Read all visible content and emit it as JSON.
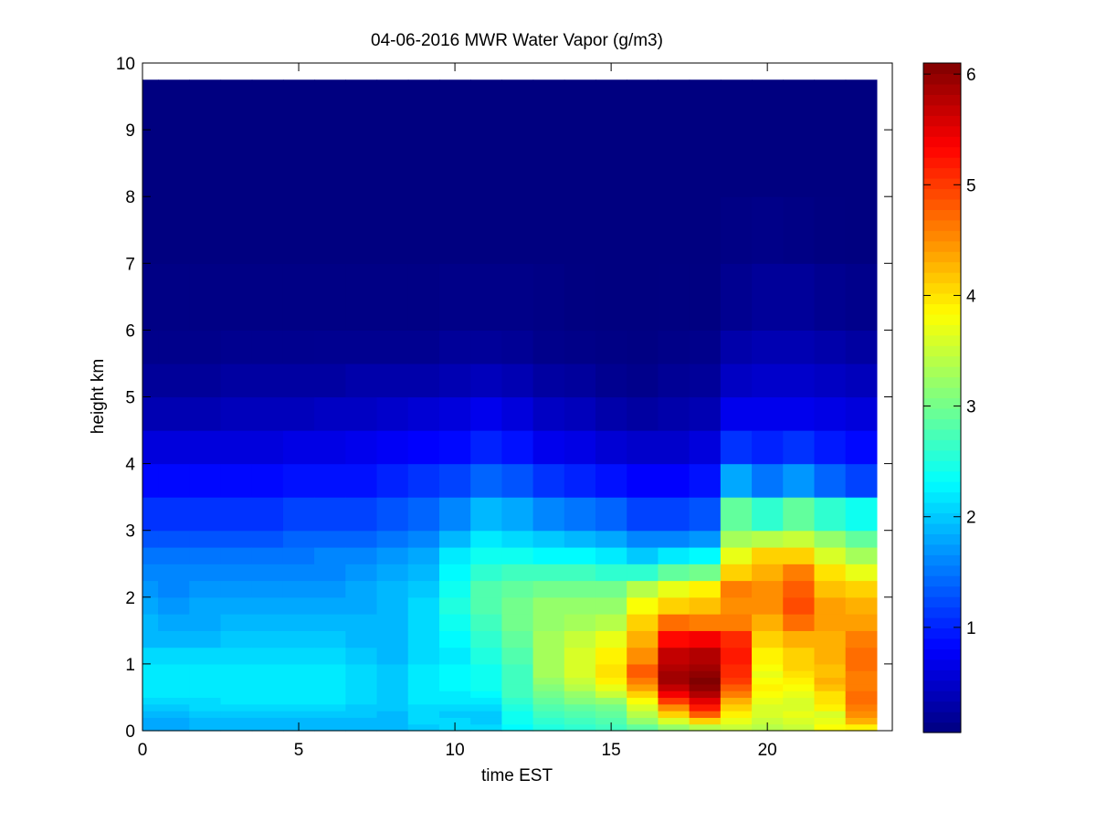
{
  "chart_data": {
    "type": "heatmap",
    "title": "04-06-2016 MWR Water Vapor (g/m3)",
    "xlabel": "time EST",
    "ylabel": "height km",
    "xlim": [
      0,
      24
    ],
    "ylim": [
      0,
      10
    ],
    "xticks": [
      "0",
      "5",
      "10",
      "15",
      "20"
    ],
    "yticks": [
      "0",
      "1",
      "2",
      "3",
      "4",
      "5",
      "6",
      "7",
      "8",
      "9",
      "10"
    ],
    "colorbar": {
      "colormap": "jet",
      "clim": [
        0.05,
        6.1
      ],
      "ticks": [
        "1",
        "2",
        "3",
        "4",
        "5",
        "6"
      ]
    },
    "grid": false,
    "x_range_data": [
      0,
      23.5
    ],
    "y_range_data": [
      0,
      9.75
    ],
    "time_hours": [
      0.5,
      1.5,
      2.5,
      3.5,
      4.5,
      5.5,
      6.5,
      7.5,
      8.5,
      9.5,
      10.5,
      11.5,
      12.5,
      13.5,
      14.5,
      15.5,
      16.5,
      17.5,
      18.5,
      19.5,
      20.5,
      21.5,
      22.5,
      23.5
    ],
    "height_km": [
      0,
      0.1,
      0.2,
      0.3,
      0.4,
      0.5,
      0.6,
      0.7,
      0.8,
      0.9,
      1.0,
      1.25,
      1.5,
      1.75,
      2.0,
      2.25,
      2.5,
      2.75,
      3.0,
      3.5,
      4.0,
      4.5,
      5.0,
      5.5,
      6.0,
      7.0,
      8.0,
      9.0,
      9.75
    ],
    "profiles": [
      [
        1.8,
        1.8,
        1.9,
        2.0,
        2.1,
        2.2,
        2.2,
        2.2,
        2.2,
        2.2,
        2.1,
        1.9,
        1.9,
        1.8,
        1.7,
        1.6,
        1.5,
        1.3,
        1.1,
        0.85,
        0.6,
        0.35,
        0.2,
        0.12,
        0.08,
        0.05,
        0.05,
        0.05,
        0.05
      ],
      [
        1.8,
        1.8,
        1.9,
        2.0,
        2.1,
        2.2,
        2.2,
        2.2,
        2.2,
        2.2,
        2.1,
        1.9,
        1.8,
        1.7,
        1.6,
        1.6,
        1.5,
        1.3,
        1.1,
        0.85,
        0.6,
        0.35,
        0.2,
        0.12,
        0.08,
        0.05,
        0.05,
        0.05,
        0.05
      ],
      [
        1.9,
        1.9,
        2.0,
        2.1,
        2.1,
        2.2,
        2.2,
        2.2,
        2.2,
        2.2,
        2.1,
        1.9,
        1.8,
        1.8,
        1.7,
        1.6,
        1.5,
        1.3,
        1.1,
        0.85,
        0.6,
        0.35,
        0.2,
        0.12,
        0.08,
        0.05,
        0.05,
        0.05,
        0.05
      ],
      [
        1.9,
        1.9,
        2.0,
        2.1,
        2.2,
        2.2,
        2.2,
        2.2,
        2.2,
        2.2,
        2.1,
        2.0,
        1.9,
        1.8,
        1.7,
        1.6,
        1.5,
        1.3,
        1.1,
        0.85,
        0.6,
        0.4,
        0.25,
        0.14,
        0.08,
        0.05,
        0.05,
        0.05,
        0.05
      ],
      [
        1.9,
        1.9,
        2.0,
        2.1,
        2.2,
        2.2,
        2.2,
        2.2,
        2.2,
        2.2,
        2.1,
        2.0,
        1.9,
        1.8,
        1.7,
        1.6,
        1.5,
        1.3,
        1.1,
        0.85,
        0.6,
        0.4,
        0.25,
        0.14,
        0.08,
        0.05,
        0.05,
        0.05,
        0.05
      ],
      [
        1.9,
        1.9,
        2.0,
        2.1,
        2.2,
        2.2,
        2.2,
        2.2,
        2.2,
        2.2,
        2.1,
        2.0,
        1.9,
        1.8,
        1.7,
        1.6,
        1.5,
        1.4,
        1.2,
        0.9,
        0.65,
        0.4,
        0.25,
        0.14,
        0.08,
        0.05,
        0.05,
        0.05,
        0.05
      ],
      [
        1.9,
        1.9,
        2.0,
        2.1,
        2.2,
        2.2,
        2.2,
        2.2,
        2.2,
        2.2,
        2.1,
        2.0,
        1.9,
        1.8,
        1.7,
        1.6,
        1.6,
        1.4,
        1.2,
        0.9,
        0.65,
        0.45,
        0.25,
        0.15,
        0.08,
        0.05,
        0.05,
        0.05,
        0.05
      ],
      [
        1.9,
        1.9,
        2.0,
        2.0,
        2.1,
        2.1,
        2.1,
        2.1,
        2.1,
        2.1,
        2.0,
        1.9,
        1.9,
        1.8,
        1.8,
        1.7,
        1.6,
        1.4,
        1.2,
        0.9,
        0.7,
        0.45,
        0.3,
        0.15,
        0.08,
        0.05,
        0.05,
        0.05,
        0.05
      ],
      [
        1.9,
        1.9,
        1.9,
        2.0,
        2.0,
        2.0,
        2.0,
        2.0,
        2.0,
        2.0,
        1.9,
        1.9,
        1.9,
        1.9,
        1.9,
        1.8,
        1.7,
        1.5,
        1.3,
        1.0,
        0.75,
        0.5,
        0.3,
        0.15,
        0.08,
        0.05,
        0.05,
        0.05,
        0.05
      ],
      [
        2.0,
        2.1,
        2.1,
        2.1,
        2.2,
        2.2,
        2.2,
        2.2,
        2.2,
        2.2,
        2.1,
        2.1,
        2.1,
        2.1,
        2.0,
        1.9,
        1.8,
        1.6,
        1.4,
        1.1,
        0.8,
        0.55,
        0.3,
        0.15,
        0.08,
        0.05,
        0.05,
        0.05,
        0.05
      ],
      [
        2.1,
        2.1,
        2.0,
        2.1,
        2.2,
        2.2,
        2.3,
        2.3,
        2.3,
        2.3,
        2.2,
        2.3,
        2.4,
        2.5,
        2.4,
        2.3,
        2.2,
        1.9,
        1.6,
        1.2,
        0.85,
        0.6,
        0.35,
        0.2,
        0.1,
        0.05,
        0.05,
        0.05,
        0.05
      ],
      [
        2.1,
        2.0,
        2.0,
        2.1,
        2.2,
        2.3,
        2.4,
        2.4,
        2.4,
        2.4,
        2.5,
        2.6,
        2.7,
        2.8,
        2.8,
        2.6,
        2.4,
        2.2,
        1.9,
        1.4,
        1.0,
        0.7,
        0.4,
        0.2,
        0.1,
        0.05,
        0.05,
        0.05,
        0.05
      ],
      [
        2.3,
        2.4,
        2.4,
        2.5,
        2.6,
        2.7,
        2.7,
        2.7,
        2.7,
        2.7,
        2.8,
        2.9,
        3.0,
        3.0,
        2.9,
        2.7,
        2.4,
        2.1,
        1.8,
        1.3,
        0.9,
        0.6,
        0.35,
        0.18,
        0.1,
        0.05,
        0.05,
        0.05,
        0.05
      ],
      [
        2.5,
        2.6,
        2.7,
        2.8,
        2.9,
        3.0,
        3.1,
        3.2,
        3.3,
        3.3,
        3.3,
        3.3,
        3.2,
        3.2,
        3.0,
        2.7,
        2.3,
        2.0,
        1.6,
        1.1,
        0.7,
        0.45,
        0.25,
        0.12,
        0.08,
        0.05,
        0.05,
        0.05,
        0.05
      ],
      [
        2.6,
        2.7,
        2.8,
        2.9,
        3.1,
        3.2,
        3.4,
        3.5,
        3.6,
        3.6,
        3.6,
        3.5,
        3.3,
        3.2,
        3.0,
        2.7,
        2.3,
        1.9,
        1.5,
        1.0,
        0.65,
        0.4,
        0.22,
        0.1,
        0.06,
        0.05,
        0.05,
        0.05,
        0.05
      ],
      [
        2.7,
        2.8,
        2.9,
        3.0,
        3.2,
        3.5,
        3.7,
        3.9,
        4.0,
        4.0,
        3.9,
        3.7,
        3.4,
        3.2,
        3.0,
        2.6,
        2.2,
        1.8,
        1.4,
        0.9,
        0.55,
        0.3,
        0.15,
        0.08,
        0.05,
        0.05,
        0.05,
        0.05,
        0.05
      ],
      [
        2.9,
        3.2,
        3.4,
        3.6,
        3.8,
        4.1,
        4.4,
        4.6,
        4.8,
        4.8,
        4.5,
        4.3,
        4.1,
        3.8,
        3.4,
        2.6,
        2.0,
        1.6,
        1.2,
        0.8,
        0.5,
        0.25,
        0.12,
        0.07,
        0.05,
        0.05,
        0.05,
        0.05,
        0.05
      ],
      [
        3.2,
        3.6,
        4.1,
        4.5,
        5.0,
        5.4,
        5.7,
        5.9,
        5.9,
        5.8,
        5.7,
        5.3,
        4.7,
        4.1,
        3.7,
        2.9,
        2.2,
        1.6,
        1.2,
        0.8,
        0.5,
        0.3,
        0.18,
        0.1,
        0.06,
        0.05,
        0.05,
        0.05,
        0.05
      ],
      [
        3.4,
        4.1,
        4.8,
        5.2,
        5.5,
        5.8,
        6.0,
        6.1,
        6.0,
        5.9,
        5.8,
        5.4,
        4.6,
        4.2,
        3.9,
        3.0,
        2.3,
        1.7,
        1.3,
        0.9,
        0.6,
        0.35,
        0.2,
        0.12,
        0.06,
        0.05,
        0.05,
        0.05,
        0.05
      ],
      [
        3.5,
        3.7,
        3.9,
        4.1,
        4.3,
        4.6,
        4.8,
        5.0,
        5.1,
        5.1,
        5.2,
        5.1,
        4.6,
        4.5,
        4.6,
        4.1,
        3.7,
        3.3,
        2.9,
        1.8,
        1.1,
        0.7,
        0.45,
        0.3,
        0.15,
        0.08,
        0.05,
        0.05,
        0.05
      ],
      [
        3.4,
        3.5,
        3.6,
        3.6,
        3.7,
        3.8,
        3.9,
        3.8,
        3.7,
        3.8,
        3.9,
        4.1,
        4.3,
        4.5,
        4.5,
        4.3,
        4.1,
        3.4,
        2.6,
        1.5,
        1.0,
        0.7,
        0.5,
        0.35,
        0.2,
        0.1,
        0.05,
        0.05,
        0.05
      ],
      [
        3.5,
        3.6,
        3.7,
        3.6,
        3.6,
        3.7,
        3.8,
        3.9,
        4.0,
        4.1,
        4.1,
        4.3,
        4.7,
        4.9,
        4.8,
        4.6,
        4.1,
        3.5,
        2.9,
        1.7,
        1.1,
        0.7,
        0.5,
        0.35,
        0.2,
        0.08,
        0.05,
        0.05,
        0.05
      ],
      [
        3.8,
        3.7,
        3.6,
        3.9,
        4.0,
        4.0,
        4.2,
        4.3,
        4.2,
        4.2,
        4.3,
        4.3,
        4.4,
        4.4,
        4.2,
        4.0,
        3.6,
        3.2,
        2.6,
        1.4,
        0.95,
        0.65,
        0.45,
        0.3,
        0.15,
        0.06,
        0.05,
        0.05,
        0.05
      ],
      [
        3.9,
        4.3,
        4.5,
        4.6,
        4.7,
        4.7,
        4.6,
        4.6,
        4.6,
        4.7,
        4.7,
        4.6,
        4.4,
        4.3,
        4.1,
        3.7,
        3.3,
        2.9,
        2.4,
        1.2,
        0.85,
        0.6,
        0.4,
        0.25,
        0.12,
        0.05,
        0.05,
        0.05,
        0.05
      ]
    ]
  }
}
